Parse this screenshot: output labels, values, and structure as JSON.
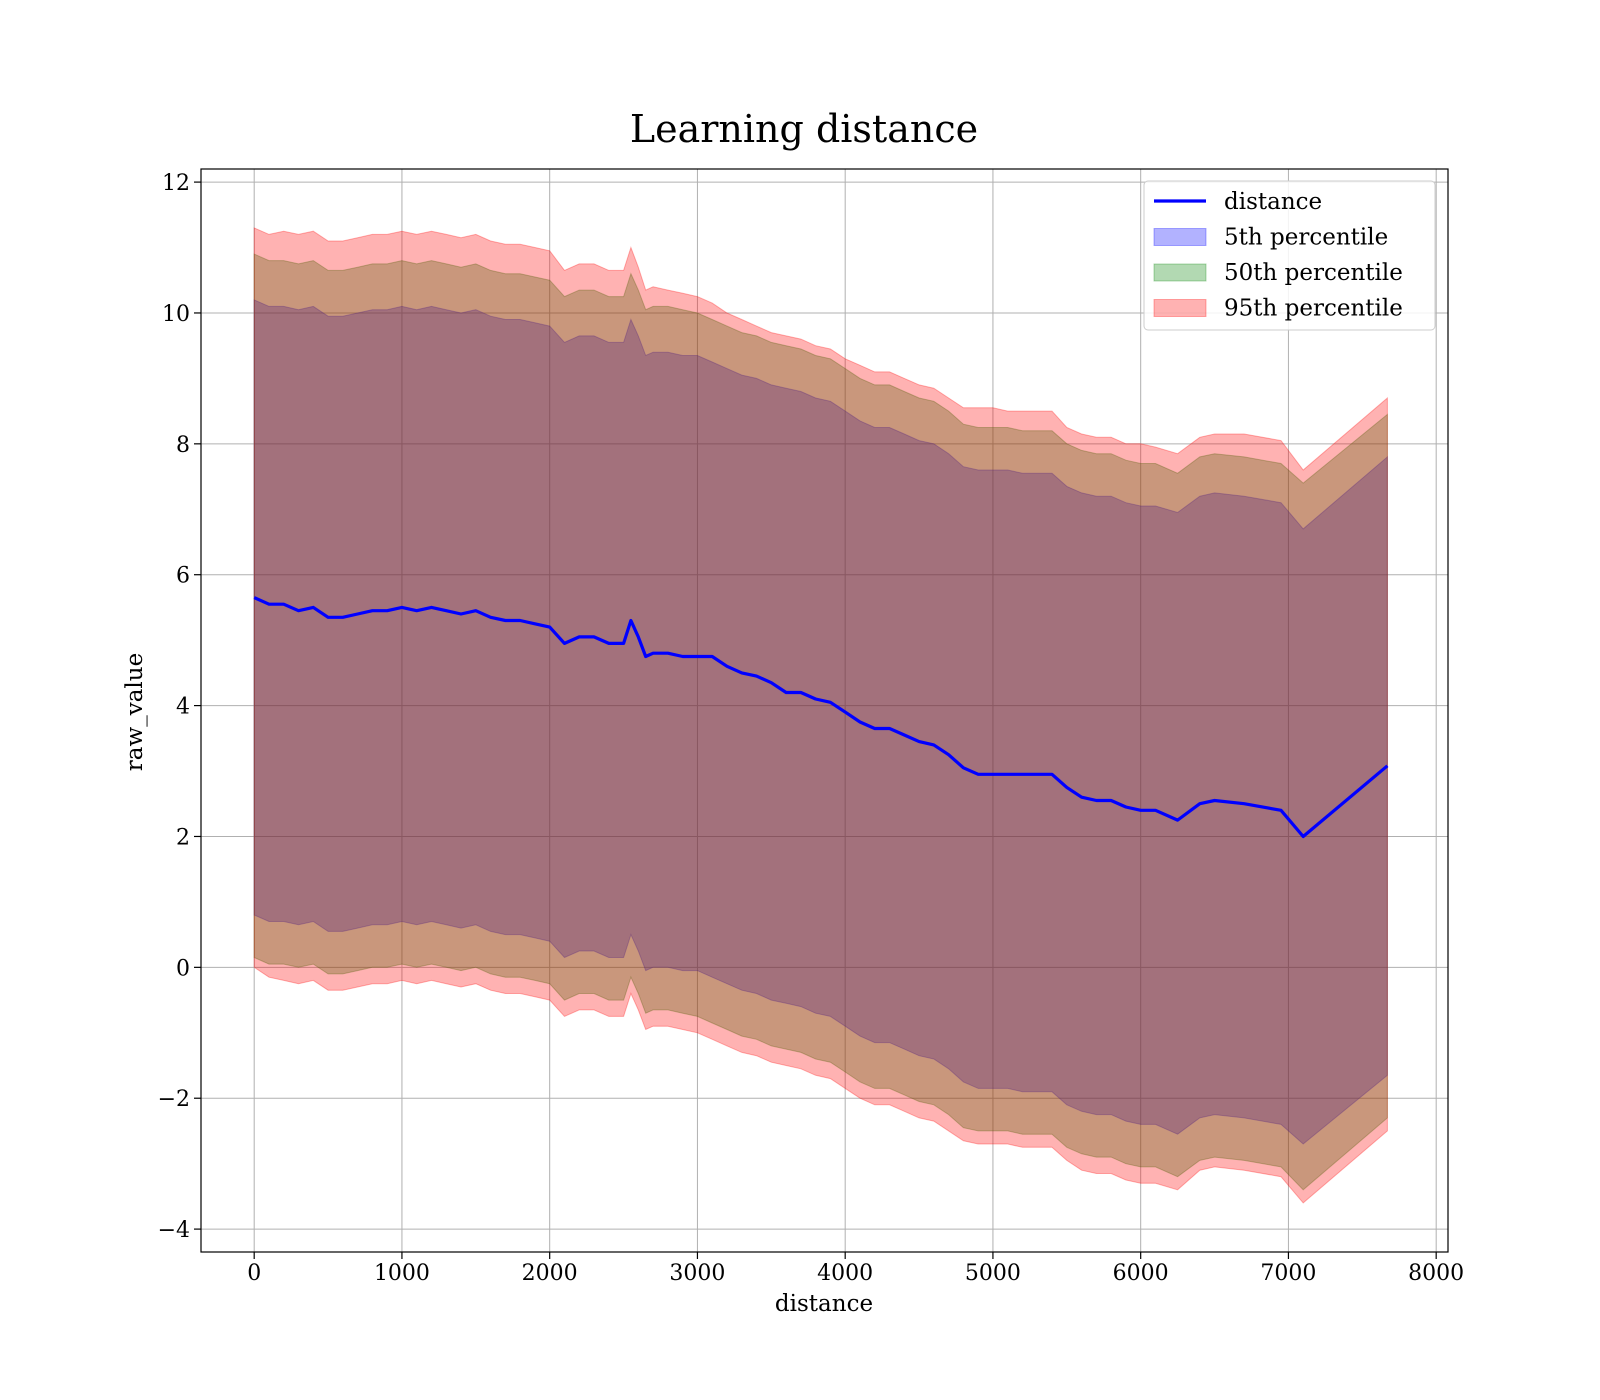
{
  "chart_data": {
    "type": "area",
    "title": "Learning distance",
    "xlabel": "distance",
    "ylabel": "raw_value",
    "xlim": [
      -360,
      8080
    ],
    "ylim": [
      -4.35,
      12.2
    ],
    "xticks": [
      0,
      1000,
      2000,
      3000,
      4000,
      5000,
      6000,
      7000,
      8000
    ],
    "xtick_labels": [
      "0",
      "1000",
      "2000",
      "3000",
      "4000",
      "5000",
      "6000",
      "7000",
      "8000"
    ],
    "yticks": [
      -4,
      -2,
      0,
      2,
      4,
      6,
      8,
      10,
      12
    ],
    "ytick_labels": [
      "−4",
      "−2",
      "0",
      "2",
      "4",
      "6",
      "8",
      "10",
      "12"
    ],
    "grid": true,
    "legend_position": "top-right",
    "legend": [
      "distance",
      "5th percentile",
      "50th percentile",
      "95th percentile"
    ],
    "colors": {
      "distance": "#0000ff",
      "p5": "#0000ff",
      "p50": "#008000",
      "p95": "#ff0000"
    },
    "band_alpha": 0.3,
    "x": [
      0,
      100,
      200,
      300,
      400,
      500,
      600,
      700,
      800,
      900,
      1000,
      1100,
      1200,
      1300,
      1400,
      1500,
      1600,
      1700,
      1800,
      1900,
      2000,
      2100,
      2200,
      2300,
      2400,
      2500,
      2550,
      2600,
      2650,
      2700,
      2800,
      2900,
      3000,
      3100,
      3200,
      3300,
      3400,
      3500,
      3600,
      3700,
      3800,
      3900,
      4000,
      4100,
      4200,
      4300,
      4400,
      4500,
      4600,
      4700,
      4800,
      4900,
      5000,
      5100,
      5200,
      5300,
      5400,
      5500,
      5600,
      5700,
      5800,
      5900,
      6000,
      6100,
      6250,
      6400,
      6500,
      6700,
      6950,
      7100,
      7670
    ],
    "series": [
      {
        "name": "distance",
        "type": "line",
        "values": [
          5.65,
          5.55,
          5.55,
          5.45,
          5.5,
          5.35,
          5.35,
          5.4,
          5.45,
          5.45,
          5.5,
          5.45,
          5.5,
          5.45,
          5.4,
          5.45,
          5.35,
          5.3,
          5.3,
          5.25,
          5.2,
          4.95,
          5.05,
          5.05,
          4.95,
          4.95,
          5.3,
          5.05,
          4.75,
          4.8,
          4.8,
          4.75,
          4.75,
          4.75,
          4.6,
          4.5,
          4.45,
          4.35,
          4.2,
          4.2,
          4.1,
          4.05,
          3.9,
          3.75,
          3.65,
          3.65,
          3.55,
          3.45,
          3.4,
          3.25,
          3.05,
          2.95,
          2.95,
          2.95,
          2.95,
          2.95,
          2.95,
          2.75,
          2.6,
          2.55,
          2.55,
          2.45,
          2.4,
          2.4,
          2.25,
          2.5,
          2.55,
          2.5,
          2.4,
          2.0,
          3.08
        ]
      },
      {
        "name": "5th percentile",
        "type": "band",
        "lower": [
          0.8,
          0.7,
          0.7,
          0.65,
          0.7,
          0.55,
          0.55,
          0.6,
          0.65,
          0.65,
          0.7,
          0.65,
          0.7,
          0.65,
          0.6,
          0.65,
          0.55,
          0.5,
          0.5,
          0.45,
          0.4,
          0.15,
          0.25,
          0.25,
          0.15,
          0.15,
          0.5,
          0.25,
          -0.05,
          0.0,
          0.0,
          -0.05,
          -0.05,
          -0.15,
          -0.25,
          -0.35,
          -0.4,
          -0.5,
          -0.55,
          -0.6,
          -0.7,
          -0.75,
          -0.9,
          -1.05,
          -1.15,
          -1.15,
          -1.25,
          -1.35,
          -1.4,
          -1.55,
          -1.75,
          -1.85,
          -1.85,
          -1.85,
          -1.9,
          -1.9,
          -1.9,
          -2.1,
          -2.2,
          -2.25,
          -2.25,
          -2.35,
          -2.4,
          -2.4,
          -2.55,
          -2.3,
          -2.25,
          -2.3,
          -2.4,
          -2.7,
          -1.65
        ],
        "upper": [
          10.2,
          10.1,
          10.1,
          10.05,
          10.1,
          9.95,
          9.95,
          10.0,
          10.05,
          10.05,
          10.1,
          10.05,
          10.1,
          10.05,
          10.0,
          10.05,
          9.95,
          9.9,
          9.9,
          9.85,
          9.8,
          9.55,
          9.65,
          9.65,
          9.55,
          9.55,
          9.9,
          9.65,
          9.35,
          9.4,
          9.4,
          9.35,
          9.35,
          9.25,
          9.15,
          9.05,
          9.0,
          8.9,
          8.85,
          8.8,
          8.7,
          8.65,
          8.5,
          8.35,
          8.25,
          8.25,
          8.15,
          8.05,
          8.0,
          7.85,
          7.65,
          7.6,
          7.6,
          7.6,
          7.55,
          7.55,
          7.55,
          7.35,
          7.25,
          7.2,
          7.2,
          7.1,
          7.05,
          7.05,
          6.95,
          7.2,
          7.25,
          7.2,
          7.1,
          6.7,
          7.8
        ]
      },
      {
        "name": "50th percentile",
        "type": "band",
        "lower": [
          0.15,
          0.05,
          0.05,
          0.0,
          0.05,
          -0.1,
          -0.1,
          -0.05,
          0.0,
          0.0,
          0.05,
          0.0,
          0.05,
          0.0,
          -0.05,
          0.0,
          -0.1,
          -0.15,
          -0.15,
          -0.2,
          -0.25,
          -0.5,
          -0.4,
          -0.4,
          -0.5,
          -0.5,
          -0.15,
          -0.4,
          -0.7,
          -0.65,
          -0.65,
          -0.7,
          -0.75,
          -0.85,
          -0.95,
          -1.05,
          -1.1,
          -1.2,
          -1.25,
          -1.3,
          -1.4,
          -1.45,
          -1.6,
          -1.75,
          -1.85,
          -1.85,
          -1.95,
          -2.05,
          -2.1,
          -2.25,
          -2.45,
          -2.5,
          -2.5,
          -2.5,
          -2.55,
          -2.55,
          -2.55,
          -2.75,
          -2.85,
          -2.9,
          -2.9,
          -3.0,
          -3.05,
          -3.05,
          -3.2,
          -2.95,
          -2.9,
          -2.95,
          -3.05,
          -3.4,
          -2.3
        ],
        "upper": [
          10.9,
          10.8,
          10.8,
          10.75,
          10.8,
          10.65,
          10.65,
          10.7,
          10.75,
          10.75,
          10.8,
          10.75,
          10.8,
          10.75,
          10.7,
          10.75,
          10.65,
          10.6,
          10.6,
          10.55,
          10.5,
          10.25,
          10.35,
          10.35,
          10.25,
          10.25,
          10.6,
          10.35,
          10.05,
          10.1,
          10.1,
          10.05,
          10.0,
          9.9,
          9.8,
          9.7,
          9.65,
          9.55,
          9.5,
          9.45,
          9.35,
          9.3,
          9.15,
          9.0,
          8.9,
          8.9,
          8.8,
          8.7,
          8.65,
          8.5,
          8.3,
          8.25,
          8.25,
          8.25,
          8.2,
          8.2,
          8.2,
          8.0,
          7.9,
          7.85,
          7.85,
          7.75,
          7.7,
          7.7,
          7.55,
          7.8,
          7.85,
          7.8,
          7.7,
          7.4,
          8.45
        ]
      },
      {
        "name": "95th percentile",
        "type": "band",
        "lower": [
          0.0,
          -0.15,
          -0.2,
          -0.25,
          -0.2,
          -0.35,
          -0.35,
          -0.3,
          -0.25,
          -0.25,
          -0.2,
          -0.25,
          -0.2,
          -0.25,
          -0.3,
          -0.25,
          -0.35,
          -0.4,
          -0.4,
          -0.45,
          -0.5,
          -0.75,
          -0.65,
          -0.65,
          -0.75,
          -0.75,
          -0.4,
          -0.65,
          -0.95,
          -0.9,
          -0.9,
          -0.95,
          -1.0,
          -1.1,
          -1.2,
          -1.3,
          -1.35,
          -1.45,
          -1.5,
          -1.55,
          -1.65,
          -1.7,
          -1.85,
          -2.0,
          -2.1,
          -2.1,
          -2.2,
          -2.3,
          -2.35,
          -2.5,
          -2.65,
          -2.7,
          -2.7,
          -2.7,
          -2.75,
          -2.75,
          -2.75,
          -2.95,
          -3.1,
          -3.15,
          -3.15,
          -3.25,
          -3.3,
          -3.3,
          -3.4,
          -3.1,
          -3.05,
          -3.1,
          -3.2,
          -3.6,
          -2.5
        ],
        "upper": [
          11.3,
          11.2,
          11.25,
          11.2,
          11.25,
          11.1,
          11.1,
          11.15,
          11.2,
          11.2,
          11.25,
          11.2,
          11.25,
          11.2,
          11.15,
          11.2,
          11.1,
          11.05,
          11.05,
          11.0,
          10.95,
          10.65,
          10.75,
          10.75,
          10.65,
          10.65,
          11.0,
          10.7,
          10.35,
          10.4,
          10.35,
          10.3,
          10.25,
          10.15,
          10.0,
          9.9,
          9.8,
          9.7,
          9.65,
          9.6,
          9.5,
          9.45,
          9.3,
          9.2,
          9.1,
          9.1,
          9.0,
          8.9,
          8.85,
          8.7,
          8.55,
          8.55,
          8.55,
          8.5,
          8.5,
          8.5,
          8.5,
          8.25,
          8.15,
          8.1,
          8.1,
          8.0,
          8.0,
          7.95,
          7.85,
          8.1,
          8.15,
          8.15,
          8.05,
          7.6,
          8.7
        ]
      }
    ]
  }
}
